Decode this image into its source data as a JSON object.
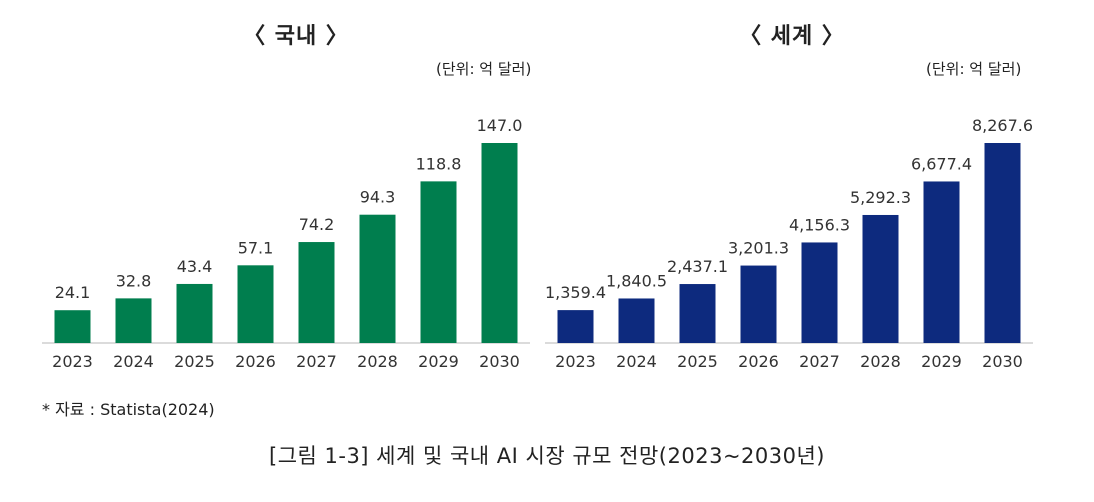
{
  "charts": [
    {
      "title": "〈 국내 〉",
      "unit": "(단위: 억 달러)",
      "color": "#007e4e"
    },
    {
      "title": "〈 세계 〉",
      "unit": "(단위: 억 달러)",
      "color": "#0d2a7e"
    }
  ],
  "chart_data": [
    {
      "type": "bar",
      "title": "〈 국내 〉",
      "categories": [
        "2023",
        "2024",
        "2025",
        "2026",
        "2027",
        "2028",
        "2029",
        "2030"
      ],
      "values": [
        24.1,
        32.8,
        43.4,
        57.1,
        74.2,
        94.3,
        118.8,
        147.0
      ],
      "labels": [
        "24.1",
        "32.8",
        "43.4",
        "57.1",
        "74.2",
        "94.3",
        "118.8",
        "147.0"
      ],
      "unit": "(단위: 억 달러)",
      "ylim": [
        0,
        147.0
      ],
      "grid": false
    },
    {
      "type": "bar",
      "title": "〈 세계 〉",
      "categories": [
        "2023",
        "2024",
        "2025",
        "2026",
        "2027",
        "2028",
        "2029",
        "2030"
      ],
      "values": [
        1359.4,
        1840.5,
        2437.1,
        3201.3,
        4156.3,
        5292.3,
        6677.4,
        8267.6
      ],
      "labels": [
        "1,359.4",
        "1,840.5",
        "2,437.1",
        "3,201.3",
        "4,156.3",
        "5,292.3",
        "6,677.4",
        "8,267.6"
      ],
      "unit": "(단위: 억 달러)",
      "ylim": [
        0,
        8267.6
      ],
      "grid": false
    }
  ],
  "source": "* 자료 : Statista(2024)",
  "caption": "[그림 1-3] 세계 및 국내 AI 시장 규모 전망(2023~2030년)"
}
